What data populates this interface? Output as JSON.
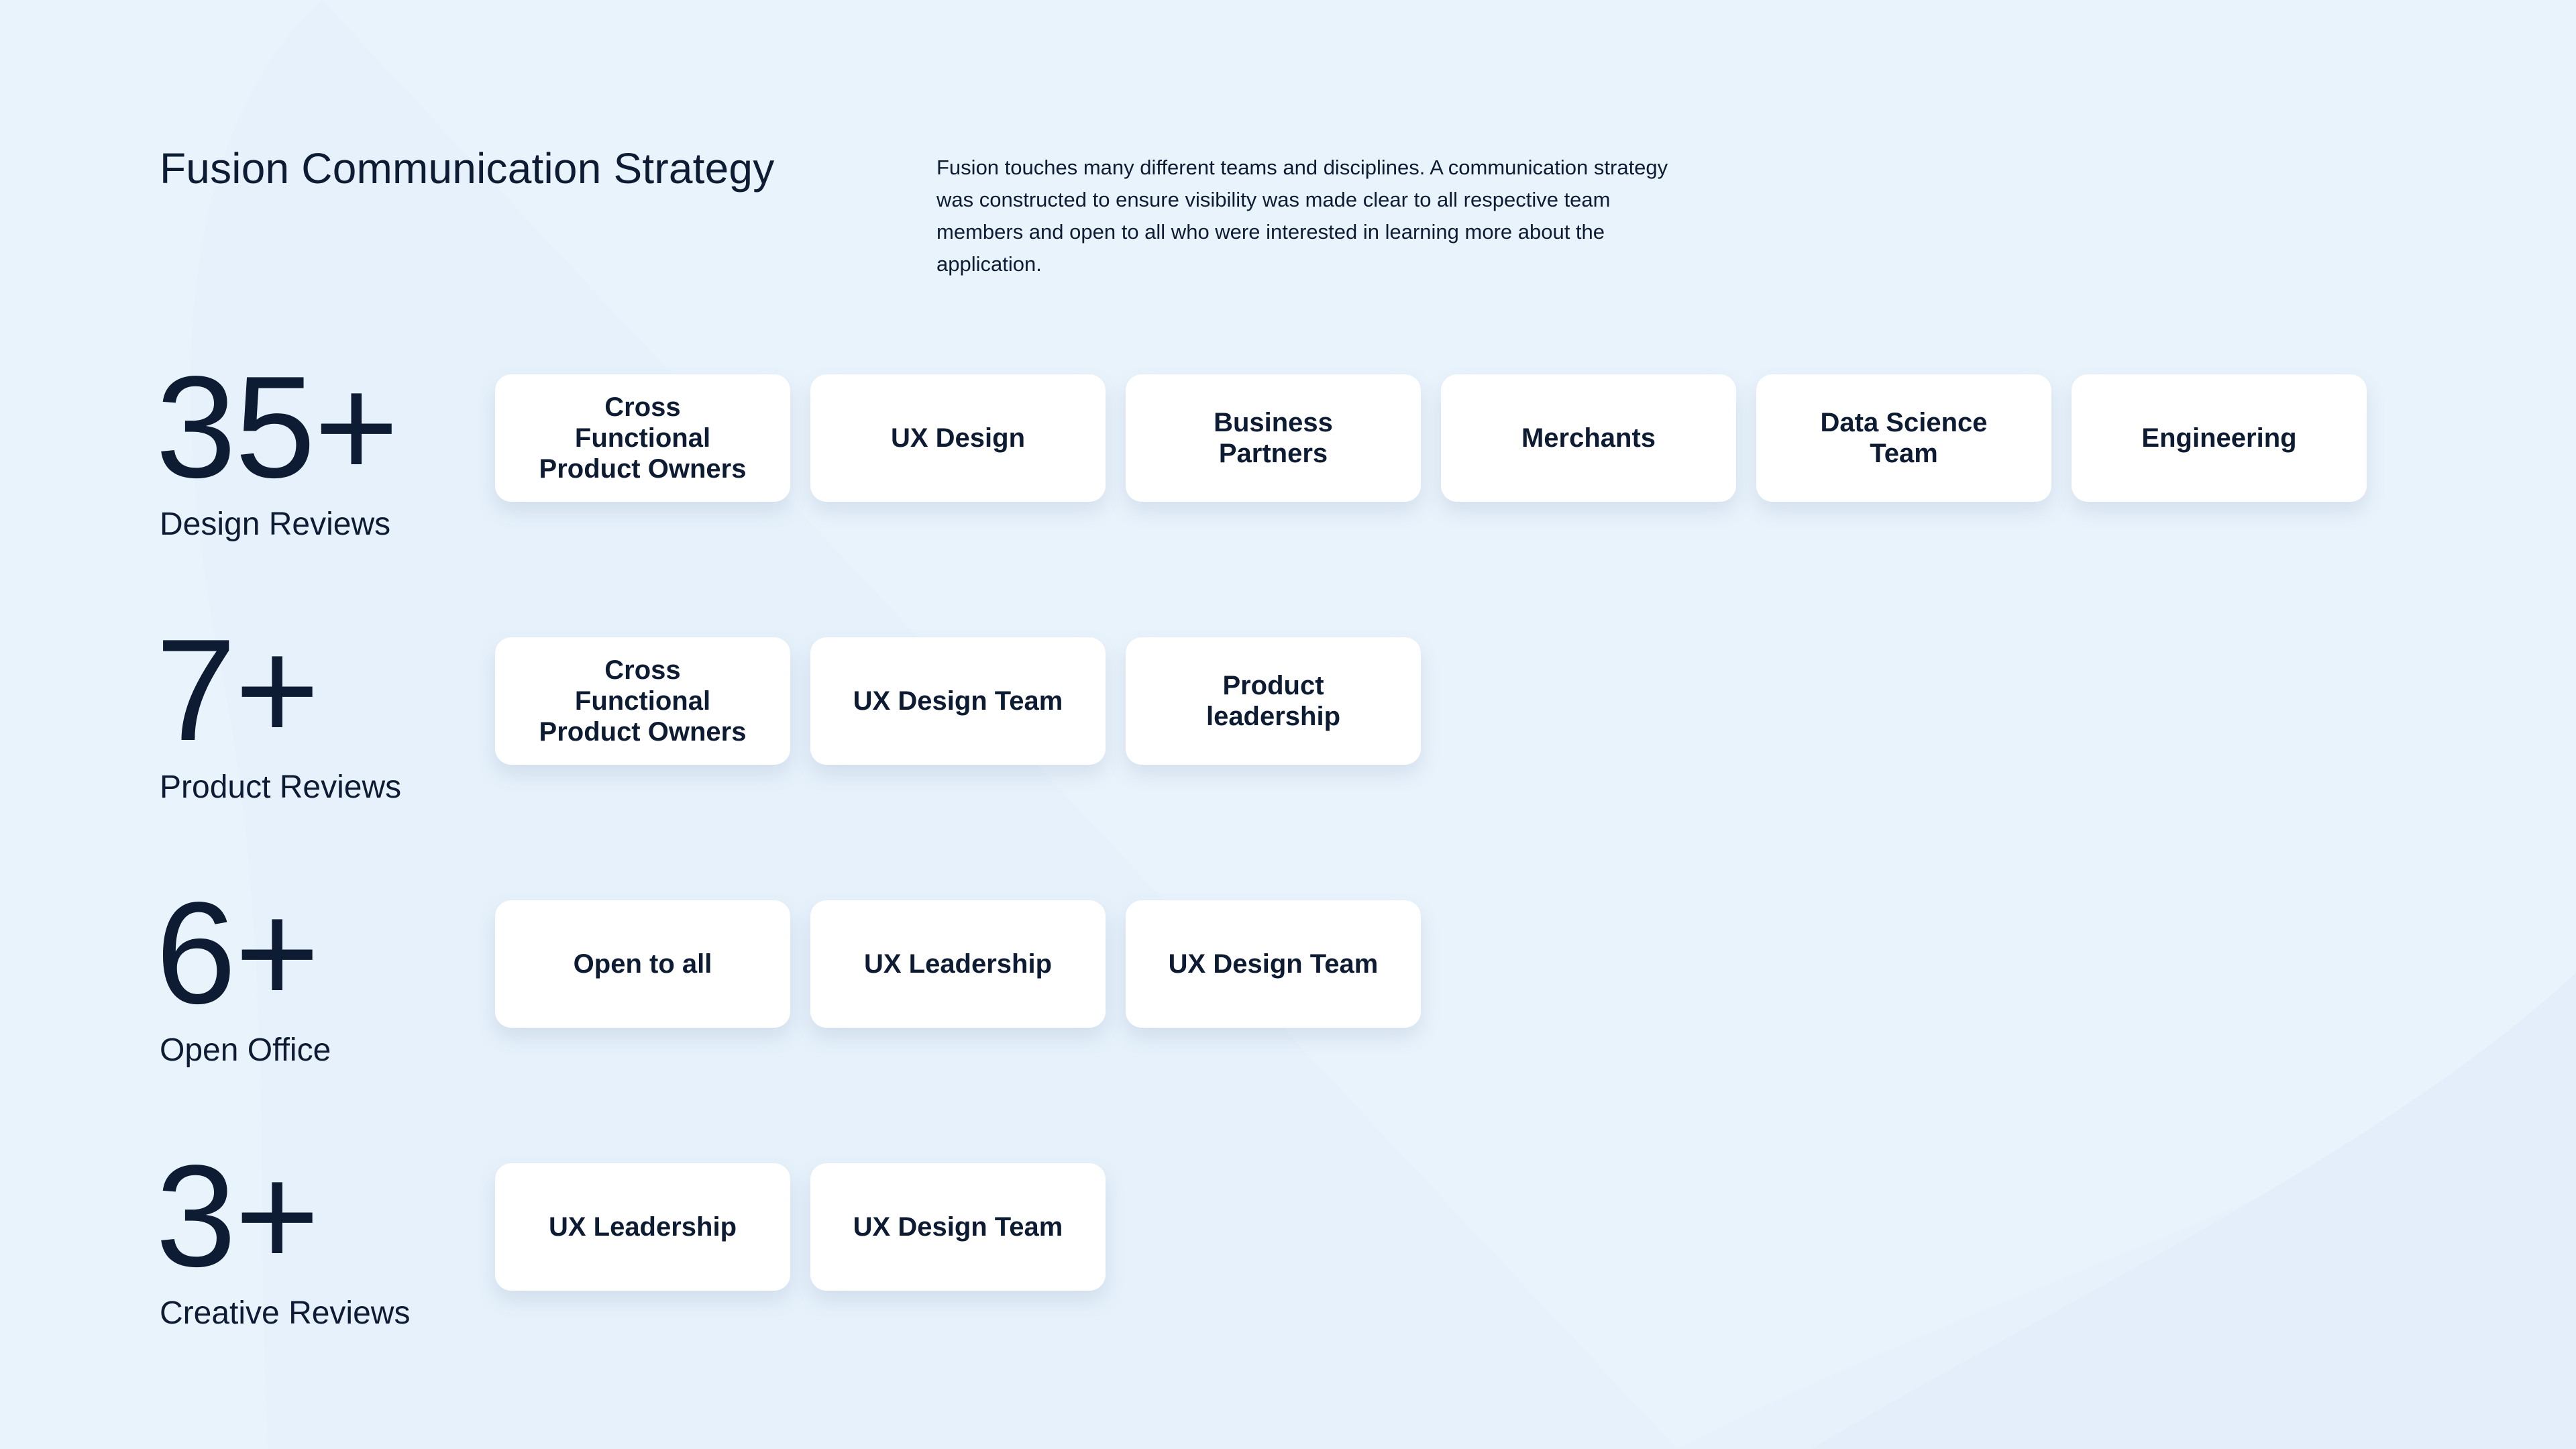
{
  "header": {
    "title": "Fusion Communication Strategy",
    "description": "Fusion touches many different teams and disciplines. A communication strategy was constructed to ensure visibility was made clear to all respective team members and open to all who were interested in learning more about the application."
  },
  "stats": [
    {
      "number": "35+",
      "label": "Design Reviews",
      "audiences": [
        "Cross Functional Product Owners",
        "UX Design",
        "Business Partners",
        "Merchants",
        "Data Science Team",
        "Engineering"
      ]
    },
    {
      "number": "7+",
      "label": "Product Reviews",
      "audiences": [
        "Cross Functional Product Owners",
        "UX Design Team",
        "Product leadership"
      ]
    },
    {
      "number": "6+",
      "label": "Open Office",
      "audiences": [
        "Open to all",
        "UX Leadership",
        "UX Design Team"
      ]
    },
    {
      "number": "3+",
      "label": "Creative Reviews",
      "audiences": [
        "UX Leadership",
        "UX Design Team"
      ]
    }
  ],
  "colors": {
    "background": "#e9f3fc",
    "text": "#0d1b33",
    "card": "#ffffff"
  }
}
